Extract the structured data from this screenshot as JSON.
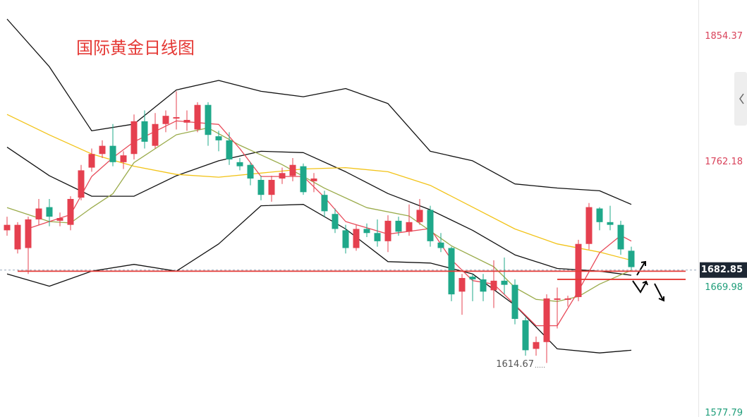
{
  "chart_data": {
    "type": "candlestick",
    "title": "国际黄金日线图",
    "open": [
      1712,
      1698,
      1699,
      1720,
      1729,
      1719,
      1716,
      1736,
      1758,
      1768,
      1774,
      1762,
      1768,
      1792,
      1774,
      1790,
      1794,
      1791,
      1786,
      1804,
      1781,
      1778,
      1762,
      1760,
      1749,
      1738,
      1750,
      1752,
      1759,
      1748,
      1738,
      1724,
      1712,
      1699,
      1713,
      1710,
      1704,
      1719,
      1711,
      1718,
      1727,
      1703,
      1699,
      1667,
      1678,
      1676,
      1668,
      1675,
      1672,
      1646,
      1625,
      1630,
      1661,
      1661,
      1663,
      1702,
      1728,
      1718,
      1716,
      1697
    ],
    "high": [
      1722,
      1718,
      1722,
      1735,
      1735,
      1725,
      1737,
      1760,
      1772,
      1778,
      1790,
      1770,
      1797,
      1800,
      1798,
      1800,
      1814,
      1800,
      1806,
      1806,
      1785,
      1784,
      1765,
      1762,
      1752,
      1752,
      1758,
      1765,
      1761,
      1754,
      1741,
      1728,
      1716,
      1716,
      1717,
      1720,
      1723,
      1722,
      1731,
      1735,
      1730,
      1710,
      1700,
      1680,
      1680,
      1680,
      1690,
      1692,
      1676,
      1648,
      1634,
      1665,
      1670,
      1664,
      1705,
      1732,
      1729,
      1730,
      1719,
      1700
    ],
    "low": [
      1708,
      1695,
      1680,
      1716,
      1715,
      1715,
      1712,
      1734,
      1755,
      1765,
      1759,
      1757,
      1764,
      1772,
      1772,
      1784,
      1786,
      1785,
      1784,
      1774,
      1770,
      1760,
      1756,
      1745,
      1734,
      1733,
      1746,
      1748,
      1738,
      1740,
      1722,
      1710,
      1695,
      1697,
      1707,
      1700,
      1696,
      1708,
      1708,
      1716,
      1700,
      1696,
      1660,
      1650,
      1660,
      1660,
      1655,
      1665,
      1643,
      1620,
      1620,
      1614.67,
      1640,
      1656,
      1660,
      1698,
      1712,
      1712,
      1694,
      1683
    ],
    "close": [
      1716,
      1716,
      1720,
      1728,
      1722,
      1721,
      1735,
      1756,
      1768,
      1774,
      1762,
      1767,
      1792,
      1777,
      1790,
      1796,
      1795,
      1793,
      1804,
      1782,
      1778,
      1764,
      1759,
      1750,
      1738,
      1749,
      1754,
      1760,
      1740,
      1750,
      1726,
      1713,
      1699,
      1713,
      1710,
      1704,
      1719,
      1711,
      1718,
      1727,
      1704,
      1699,
      1665,
      1677,
      1676,
      1667,
      1675,
      1672,
      1647,
      1624,
      1630,
      1662,
      1662,
      1662,
      1702,
      1729,
      1718,
      1716,
      1698,
      1685
    ],
    "up_color": "#e5404f",
    "down_color": "#1fa88a",
    "lines": [
      {
        "color": "#111111",
        "x": [
          0,
          4,
          8,
          12,
          16,
          20,
          24,
          28,
          32,
          36,
          40,
          44,
          48,
          52,
          56,
          59
        ],
        "values": [
          1867,
          1832,
          1785,
          1790,
          1815,
          1822,
          1814,
          1810,
          1816,
          1805,
          1770,
          1763,
          1746,
          1743,
          1741,
          1731
        ]
      },
      {
        "color": "#111111",
        "x": [
          0,
          4,
          8,
          12,
          16,
          20,
          24,
          28,
          32,
          36,
          40,
          44,
          48,
          52,
          56,
          59
        ],
        "values": [
          1773,
          1752,
          1737,
          1737,
          1752,
          1763,
          1770,
          1769,
          1755,
          1739,
          1727,
          1712,
          1694,
          1684,
          1682,
          1679
        ]
      },
      {
        "color": "#111111",
        "x": [
          0,
          4,
          8,
          12,
          16,
          20,
          24,
          28,
          32,
          36,
          40,
          44,
          48,
          52,
          56,
          59
        ],
        "values": [
          1680,
          1671,
          1682,
          1687,
          1682,
          1702,
          1730,
          1731,
          1713,
          1689,
          1688,
          1680,
          1657,
          1625,
          1622,
          1624
        ]
      },
      {
        "color": "#f2c318",
        "x": [
          0,
          4,
          8,
          12,
          16,
          20,
          24,
          28,
          32,
          36,
          40,
          44,
          48,
          52,
          56,
          59
        ],
        "values": [
          1797,
          1782,
          1768,
          1759,
          1753,
          1751,
          1754,
          1757,
          1758,
          1755,
          1745,
          1729,
          1713,
          1702,
          1696,
          1690
        ]
      },
      {
        "color": "#9aab4a",
        "x": [
          0,
          4,
          6,
          8,
          10,
          12,
          16,
          19,
          22,
          26,
          30,
          34,
          38,
          42,
          46,
          48,
          50,
          52,
          54,
          56,
          59
        ],
        "values": [
          1728.6,
          1718.4,
          1717.4,
          1728.6,
          1738.8,
          1761.7,
          1782.1,
          1787.2,
          1774.4,
          1760.2,
          1742.9,
          1728.6,
          1722.5,
          1700.6,
          1685.3,
          1670,
          1661.3,
          1659.8,
          1663.4,
          1672.5,
          1682.7
        ]
      },
      {
        "color": "#e84b5a",
        "x": [
          2,
          4,
          6,
          8,
          10,
          12,
          16,
          20,
          22,
          24,
          28,
          30,
          32,
          36,
          40,
          42,
          44,
          46,
          48,
          50,
          52,
          54,
          56,
          58,
          59
        ],
        "values": [
          1713.3,
          1718.4,
          1723.5,
          1751.5,
          1765.3,
          1777,
          1792.3,
          1789.7,
          1771.9,
          1751.5,
          1751.5,
          1736.2,
          1718.4,
          1709.2,
          1713.3,
          1690.4,
          1675.1,
          1672.5,
          1657.3,
          1642,
          1642,
          1667.5,
          1695.5,
          1708.2,
          1704.1
        ]
      }
    ],
    "levels": [
      {
        "value": 1682,
        "color": "#e53935"
      },
      {
        "value": 1676,
        "color": "#e53935"
      }
    ],
    "last_price": 1682.85,
    "ylim": [
      1575,
      1881
    ],
    "yticks": [
      1854.37,
      1762.18,
      1669.98,
      1577.79
    ],
    "ytick_colors": [
      "#d9425a",
      "#d9425a",
      "#1f9e7a",
      "#1f9e7a"
    ]
  }
}
